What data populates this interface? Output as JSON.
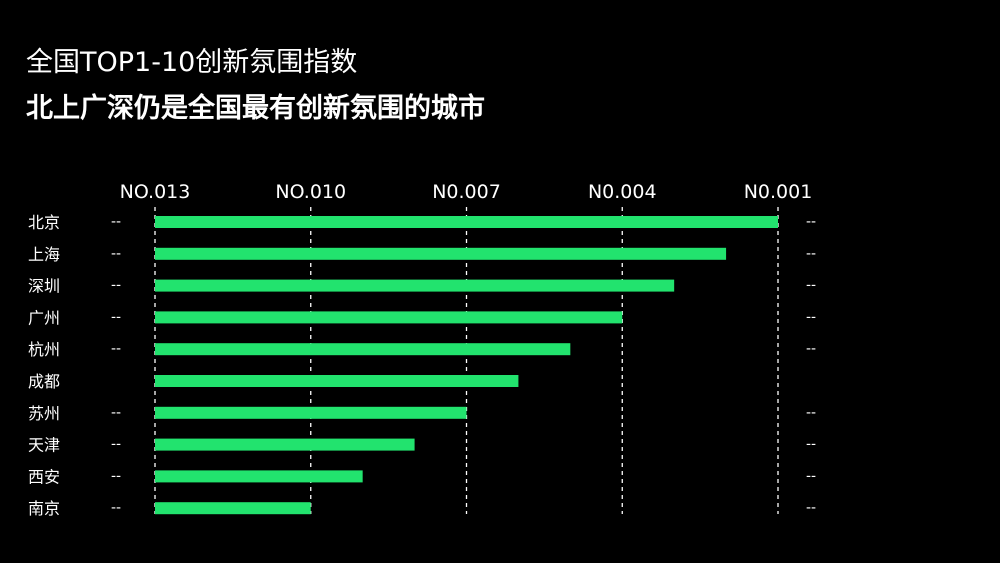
{
  "header": {
    "title": "全国TOP1-10创新氛围指数",
    "subtitle": "北上广深仍是全国最有创新氛围的城市"
  },
  "colors": {
    "background": "#000000",
    "bar": "#22e36e",
    "text": "#ffffff",
    "grid": "#ffffff"
  },
  "chart_data": {
    "type": "bar",
    "orientation": "horizontal",
    "title": "全国TOP1-10创新氛围指数",
    "subtitle": "北上广深仍是全国最有创新氛围的城市",
    "categories": [
      "北京",
      "上海",
      "深圳",
      "广州",
      "杭州",
      "成都",
      "苏州",
      "天津",
      "西安",
      "南京"
    ],
    "ranks": [
      1,
      2,
      3,
      4,
      5,
      6,
      7,
      8,
      9,
      10
    ],
    "x_axis": {
      "reversed": true,
      "range": [
        13,
        1
      ],
      "ticks": [
        13,
        10,
        7,
        4,
        1
      ],
      "tick_labels": [
        "NO.013",
        "NO.010",
        "N0.007",
        "N0.004",
        "N0.001"
      ]
    },
    "left_markers": [
      "--",
      "--",
      "--",
      "--",
      "--",
      "",
      "--",
      "--",
      "--",
      "--"
    ],
    "right_markers": [
      "--",
      "--",
      "--",
      "--",
      "--",
      "",
      "--",
      "--",
      "--",
      "--"
    ],
    "grid": "vertical-dashed",
    "legend": "none"
  }
}
